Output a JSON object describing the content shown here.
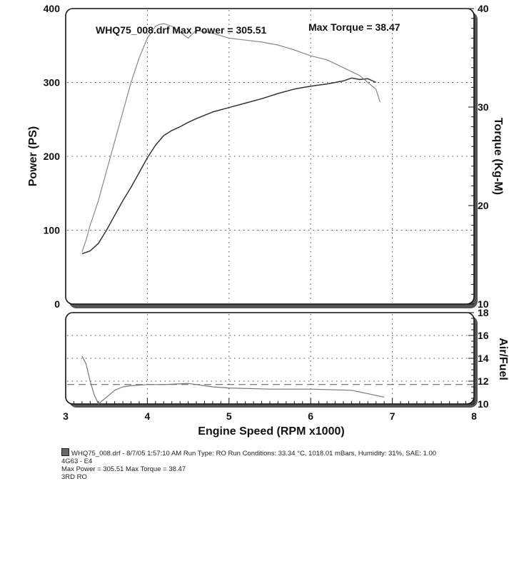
{
  "chart_data": [
    {
      "type": "line",
      "title": "WHQ75_008.drf Max Power = 305.51",
      "subtitle": "Max Torque = 38.47",
      "xlabel": "",
      "xlim": [
        3,
        8
      ],
      "x_ticks": [],
      "ylabel": "Power (PS)",
      "ylim": [
        0,
        400
      ],
      "y_ticks": [
        "0",
        "100",
        "200",
        "300",
        "400"
      ],
      "y2label": "Torque (Kg-M)",
      "y2lim": [
        10,
        40
      ],
      "y2_ticks": [
        "10",
        "20",
        "30",
        "40"
      ],
      "grid": true,
      "series": [
        {
          "axis": "left",
          "color": "#333333",
          "x": [
            3.2,
            3.3,
            3.4,
            3.5,
            3.6,
            3.7,
            3.8,
            3.9,
            4.0,
            4.1,
            4.2,
            4.3,
            4.4,
            4.5,
            4.6,
            4.8,
            5.0,
            5.2,
            5.4,
            5.6,
            5.8,
            6.0,
            6.2,
            6.4,
            6.5,
            6.6,
            6.7,
            6.8
          ],
          "values": [
            68,
            72,
            82,
            100,
            120,
            140,
            158,
            178,
            198,
            215,
            228,
            235,
            240,
            246,
            251,
            260,
            266,
            272,
            278,
            285,
            291,
            295,
            298,
            302,
            306,
            304,
            305,
            300
          ]
        },
        {
          "axis": "right",
          "color": "#888888",
          "x": [
            3.2,
            3.25,
            3.3,
            3.4,
            3.5,
            3.6,
            3.7,
            3.8,
            3.9,
            4.0,
            4.05,
            4.1,
            4.15,
            4.2,
            4.3,
            4.4,
            4.5,
            4.6,
            4.8,
            5.0,
            5.2,
            5.4,
            5.6,
            5.8,
            6.0,
            6.2,
            6.4,
            6.5,
            6.6,
            6.7,
            6.8,
            6.85
          ],
          "values": [
            15.3,
            16.5,
            18.0,
            20.5,
            23.5,
            26.5,
            29.5,
            32.5,
            35.0,
            37.0,
            37.6,
            38.2,
            38.4,
            38.47,
            38.2,
            37.6,
            37.0,
            37.8,
            37.5,
            37.0,
            36.8,
            36.6,
            36.3,
            35.8,
            35.2,
            34.8,
            34.0,
            33.6,
            33.2,
            32.5,
            31.8,
            30.5
          ]
        }
      ]
    },
    {
      "type": "line",
      "title": "",
      "xlabel": "Engine Speed (RPM x1000)",
      "xlim": [
        3,
        8
      ],
      "x_ticks": [
        "3",
        "4",
        "5",
        "6",
        "7",
        "8"
      ],
      "ylabel": "Air/Fuel",
      "ylim": [
        10,
        18
      ],
      "y_ticks": [
        "10",
        "12",
        "14",
        "16",
        "18"
      ],
      "grid": true,
      "reference_line": {
        "value": 11.7,
        "style": "dashed"
      },
      "series": [
        {
          "color": "#777777",
          "x": [
            3.2,
            3.25,
            3.3,
            3.35,
            3.4,
            3.5,
            3.6,
            3.7,
            3.8,
            4.0,
            4.2,
            4.5,
            4.8,
            5.0,
            5.5,
            6.0,
            6.5,
            6.7,
            6.9
          ],
          "values": [
            14.2,
            13.5,
            12.0,
            10.8,
            10.0,
            10.6,
            11.2,
            11.5,
            11.6,
            11.7,
            11.7,
            11.8,
            11.5,
            11.4,
            11.3,
            11.3,
            11.2,
            10.9,
            10.6
          ]
        }
      ]
    }
  ],
  "footer": {
    "line1": "WHQ75_008.drf - 8/7/05 1:57:10 AM  Run Type: RO  Run Conditions: 33.34 °C, 1018.01 mBars,  Humidity:  31%, SAE: 1.00",
    "line2": "4G63 - E4",
    "line3": "Max Power = 305.51  Max Torque = 38.47",
    "line4": "3RD RO"
  }
}
